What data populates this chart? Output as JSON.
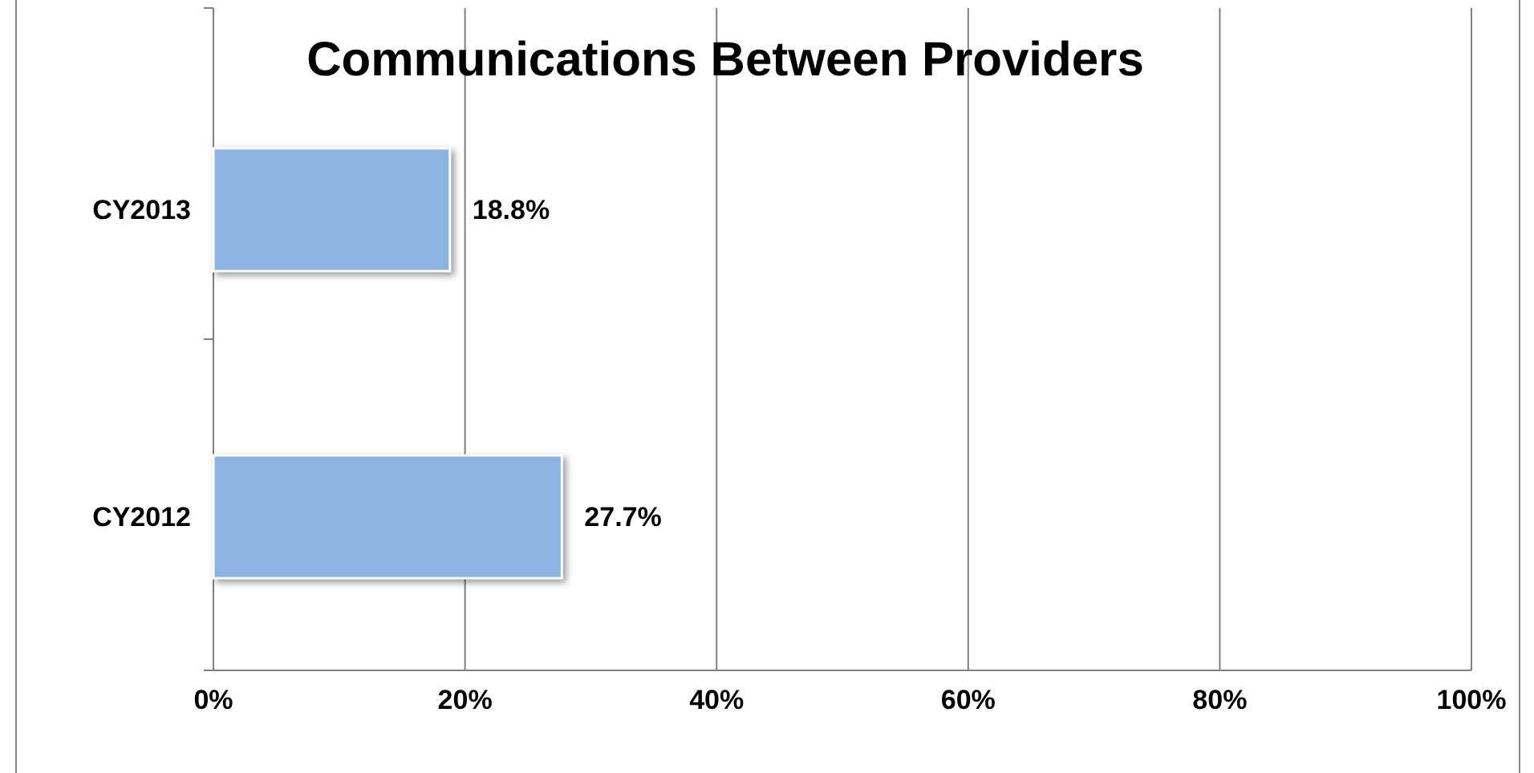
{
  "chart_data": {
    "type": "bar",
    "title": "Communications Between Providers",
    "orientation": "horizontal",
    "categories": [
      "CY2013",
      "CY2012"
    ],
    "values": [
      18.8,
      27.7
    ],
    "value_labels": [
      "18.8%",
      "27.7%"
    ],
    "color": "#8db3e2",
    "xlim": [
      0,
      100
    ],
    "xticks": [
      {
        "value": 0,
        "label": "0%"
      },
      {
        "value": 20,
        "label": "20%"
      },
      {
        "value": 40,
        "label": "40%"
      },
      {
        "value": 60,
        "label": "60%"
      },
      {
        "value": 80,
        "label": "80%"
      },
      {
        "value": 100,
        "label": "100%"
      }
    ],
    "grid": "x"
  }
}
